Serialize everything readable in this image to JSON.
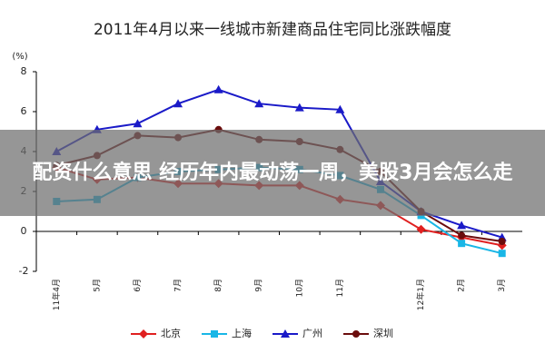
{
  "chart_data": {
    "type": "line",
    "title": "2011年4月以来一线城市新建商品住宅同比涨跌幅度",
    "y_unit": "(%)",
    "categories": [
      "11年4月",
      "5月",
      "6月",
      "7月",
      "8月",
      "9月",
      "10月",
      "11月",
      null,
      "12年1月",
      "2月",
      "3月"
    ],
    "series": [
      {
        "name": "北京",
        "color": "#e02020",
        "marker": "diamond",
        "values": [
          3.2,
          2.6,
          2.7,
          2.4,
          2.4,
          2.3,
          2.3,
          1.6,
          1.3,
          0.1,
          -0.3,
          -0.7
        ]
      },
      {
        "name": "上海",
        "color": "#19b6e6",
        "marker": "square",
        "values": [
          1.5,
          1.6,
          2.7,
          3.0,
          3.1,
          3.2,
          3.1,
          2.8,
          2.1,
          0.8,
          -0.6,
          -1.1
        ]
      },
      {
        "name": "广州",
        "color": "#1a1ac8",
        "marker": "triangle",
        "values": [
          4.0,
          5.1,
          5.4,
          6.4,
          7.1,
          6.4,
          6.2,
          6.1,
          2.5,
          1.0,
          0.3,
          -0.3
        ]
      },
      {
        "name": "深圳",
        "color": "#6b0d0d",
        "marker": "circle",
        "values": [
          3.3,
          3.8,
          4.8,
          4.7,
          5.1,
          4.6,
          4.5,
          4.1,
          3.0,
          1.0,
          -0.2,
          -0.5
        ]
      }
    ],
    "ylim": [
      -2,
      8
    ],
    "yticks": [
      -2,
      0,
      2,
      4,
      6,
      8
    ],
    "grid": false,
    "legend": "bottom"
  },
  "banner": {
    "text": "配资什么意思 经历年内最动荡一周，美股3月会怎么走"
  }
}
